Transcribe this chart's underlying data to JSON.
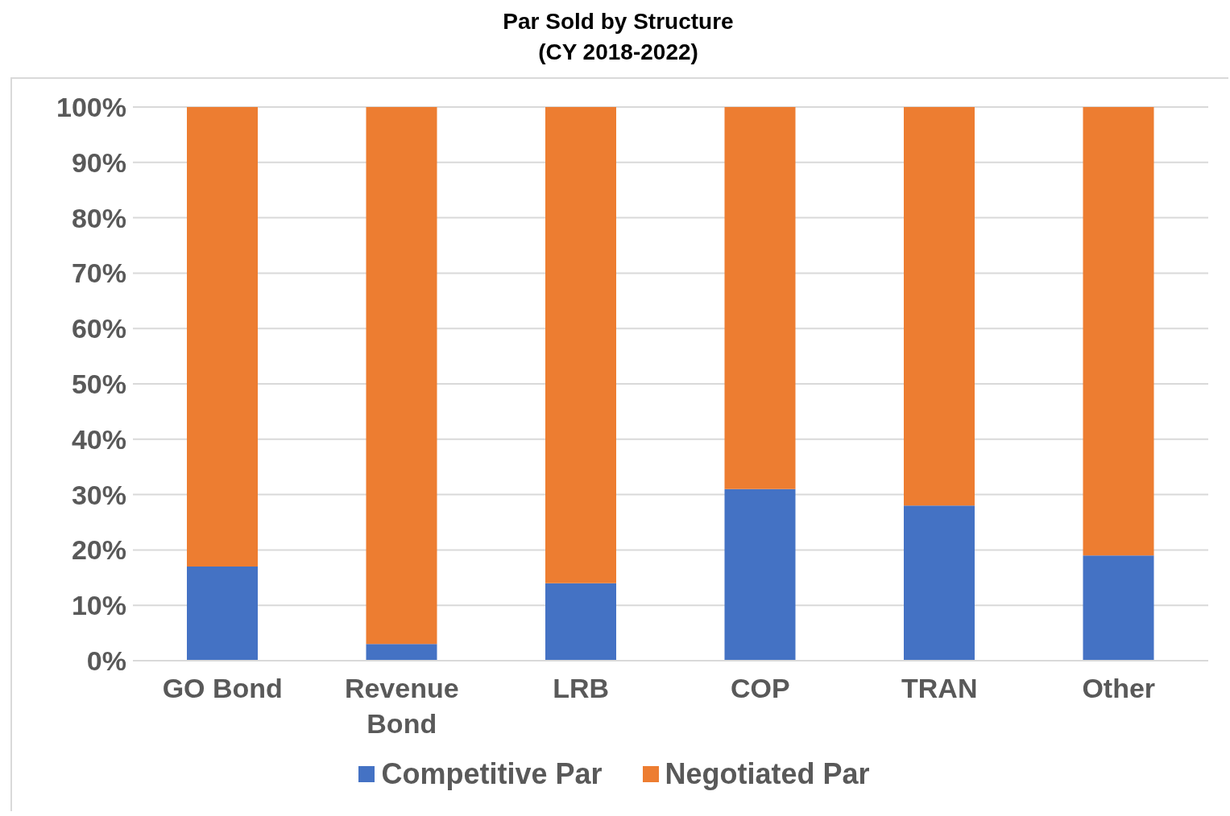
{
  "chart_data": {
    "type": "bar",
    "title": "Par Sold by Structure",
    "subtitle": "(CY 2018-2022)",
    "categories": [
      "GO Bond",
      "Revenue Bond",
      "LRB",
      "COP",
      "TRAN",
      "Other"
    ],
    "stacked": true,
    "series": [
      {
        "name": "Competitive Par",
        "color": "#4472c4",
        "values": [
          17,
          3,
          14,
          31,
          28,
          19
        ]
      },
      {
        "name": "Negotiated Par",
        "color": "#ed7d31",
        "values": [
          83,
          97,
          86,
          69,
          72,
          81
        ]
      }
    ],
    "ylim": [
      0,
      100
    ],
    "yticks": [
      {
        "value": 0,
        "label": "0%"
      },
      {
        "value": 10,
        "label": "10%"
      },
      {
        "value": 20,
        "label": "20%"
      },
      {
        "value": 30,
        "label": "30%"
      },
      {
        "value": 40,
        "label": "40%"
      },
      {
        "value": 50,
        "label": "50%"
      },
      {
        "value": 60,
        "label": "60%"
      },
      {
        "value": 70,
        "label": "70%"
      },
      {
        "value": 80,
        "label": "80%"
      },
      {
        "value": 90,
        "label": "90%"
      },
      {
        "value": 100,
        "label": "100%"
      }
    ],
    "grid": "y",
    "legend": "bottom"
  }
}
